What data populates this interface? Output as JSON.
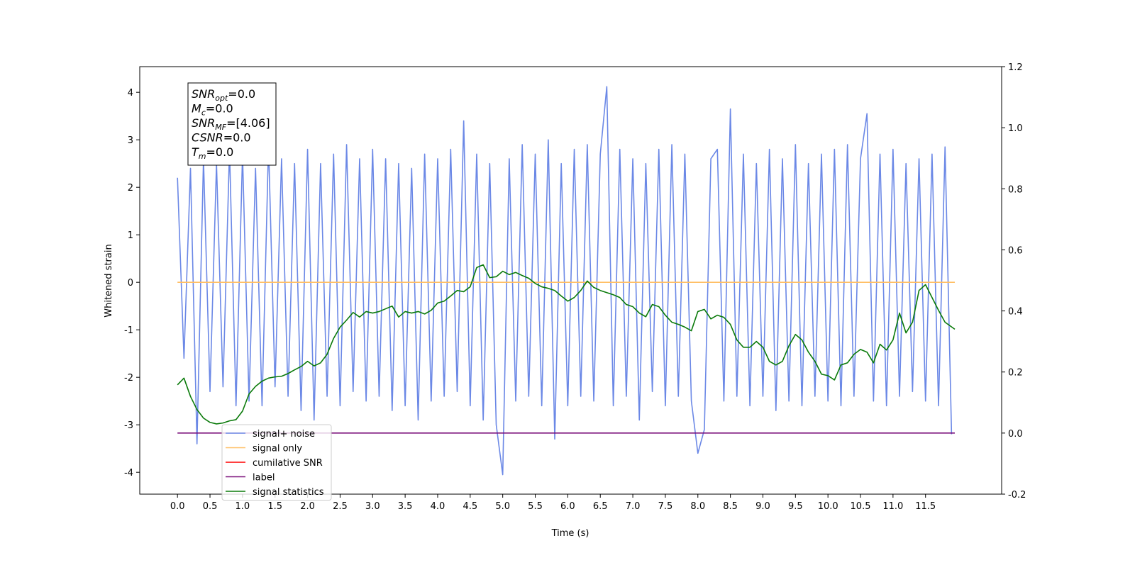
{
  "chart_data": {
    "type": "line",
    "xlabel": "Time (s)",
    "ylabel": "Whitened strain",
    "xlim": [
      -0.58,
      12.67
    ],
    "ylim": [
      -4.46,
      4.54
    ],
    "y2lim": [
      -0.2,
      1.2
    ],
    "xticks": [
      {
        "value": 0,
        "label": "0.0"
      },
      0.5,
      {
        "value": 1,
        "label": "1.0"
      },
      1.5,
      {
        "value": 2,
        "label": "2.0"
      },
      2.5,
      {
        "value": 3,
        "label": "3.0"
      },
      3.5,
      {
        "value": 4,
        "label": "4.0"
      },
      4.5,
      {
        "value": 5,
        "label": "5.0"
      },
      5.5,
      {
        "value": 6,
        "label": "6.0"
      },
      6.5,
      {
        "value": 7,
        "label": "7.0"
      },
      7.5,
      {
        "value": 8,
        "label": "8.0"
      },
      8.5,
      {
        "value": 9,
        "label": "9.0"
      },
      9.5,
      {
        "value": 10,
        "label": "10.0"
      },
      10.5,
      {
        "value": 11,
        "label": "11.0"
      },
      11.5
    ],
    "yticks": [
      -4,
      -3,
      -2,
      -1,
      0,
      1,
      2,
      3,
      4
    ],
    "y2ticks": [
      -0.2,
      {
        "value": 0,
        "label": "0.0"
      },
      0.2,
      0.4,
      0.6,
      0.8,
      {
        "value": 1,
        "label": "1.0"
      },
      1.2
    ],
    "legend": "lower left",
    "annotations": [
      {
        "symbol": "SNR",
        "sub": "opt",
        "text": "=0.0"
      },
      {
        "symbol": "M",
        "sub": "c",
        "text": "=0.0"
      },
      {
        "symbol": "SNR",
        "sub": "MF",
        "text": "=[4.06]"
      },
      {
        "symbol": "CSNR",
        "text": "=0.0"
      },
      {
        "symbol": "T",
        "sub": "m",
        "text": "=0.0"
      }
    ],
    "series": [
      {
        "name": "signal+ noise",
        "color": "#6b88e6",
        "x": [
          0.0,
          0.1,
          0.2,
          0.3,
          0.4,
          0.5,
          0.6,
          0.7,
          0.8,
          0.9,
          1.0,
          1.1,
          1.2,
          1.3,
          1.4,
          1.5,
          1.6,
          1.7,
          1.8,
          1.9,
          2.0,
          2.1,
          2.2,
          2.3,
          2.4,
          2.5,
          2.6,
          2.7,
          2.8,
          2.9,
          3.0,
          3.1,
          3.2,
          3.3,
          3.4,
          3.5,
          3.6,
          3.7,
          3.8,
          3.9,
          4.0,
          4.1,
          4.2,
          4.3,
          4.4,
          4.5,
          4.6,
          4.7,
          4.8,
          4.9,
          5.0,
          5.1,
          5.2,
          5.3,
          5.4,
          5.5,
          5.6,
          5.7,
          5.8,
          5.9,
          6.0,
          6.1,
          6.2,
          6.3,
          6.4,
          6.5,
          6.6,
          6.7,
          6.8,
          6.9,
          7.0,
          7.1,
          7.2,
          7.3,
          7.4,
          7.5,
          7.6,
          7.7,
          7.8,
          7.9,
          8.0,
          8.1,
          8.2,
          8.3,
          8.4,
          8.5,
          8.6,
          8.7,
          8.8,
          8.9,
          9.0,
          9.1,
          9.2,
          9.3,
          9.4,
          9.5,
          9.6,
          9.7,
          9.8,
          9.9,
          10.0,
          10.1,
          10.2,
          10.3,
          10.4,
          10.5,
          10.6,
          10.7,
          10.8,
          10.9,
          11.0,
          11.1,
          11.2,
          11.3,
          11.4,
          11.5,
          11.6,
          11.7,
          11.8,
          11.9
        ],
        "values": [
          2.2,
          -1.6,
          2.4,
          -3.4,
          2.6,
          -2.3,
          2.5,
          -2.2,
          2.8,
          -2.6,
          2.7,
          -2.5,
          2.4,
          -2.6,
          2.9,
          -2.2,
          2.6,
          -2.4,
          2.5,
          -2.7,
          2.8,
          -2.9,
          2.5,
          -2.4,
          2.7,
          -2.6,
          2.9,
          -2.3,
          2.6,
          -2.5,
          2.8,
          -2.4,
          2.6,
          -2.7,
          2.5,
          -2.6,
          2.4,
          -2.9,
          2.7,
          -2.5,
          2.6,
          -2.4,
          2.8,
          -2.3,
          3.4,
          -2.6,
          2.7,
          -2.9,
          2.5,
          -3.0,
          -4.05,
          2.6,
          -2.5,
          2.9,
          -2.4,
          2.7,
          -2.6,
          3.0,
          -3.3,
          2.5,
          -2.6,
          2.8,
          -2.4,
          2.9,
          -2.5,
          2.7,
          4.12,
          -2.6,
          2.8,
          -2.4,
          2.6,
          -2.9,
          2.5,
          -2.3,
          2.8,
          -2.6,
          2.9,
          -2.4,
          2.7,
          -2.5,
          -3.6,
          -3.1,
          2.6,
          2.8,
          -2.5,
          3.65,
          -2.4,
          2.7,
          -2.6,
          2.5,
          -2.4,
          2.8,
          -2.7,
          2.6,
          -2.5,
          2.9,
          -2.6,
          2.5,
          -2.4,
          2.7,
          -2.5,
          2.8,
          -2.6,
          2.9,
          -2.4,
          2.6,
          3.55,
          -2.5,
          2.7,
          -2.6,
          2.8,
          -2.4,
          2.5,
          -2.3,
          2.6,
          -2.5,
          2.7,
          -2.6,
          2.85,
          -3.2
        ]
      },
      {
        "name": "signal only",
        "color": "#ffbf66",
        "x": [
          0.0,
          11.95
        ],
        "values": [
          0,
          0
        ]
      },
      {
        "name": "cumilative SNR",
        "color": "#ff0000"
      },
      {
        "name": "label",
        "color": "#7a0f7a",
        "axis": "y2",
        "x": [
          0.0,
          11.95
        ],
        "values": [
          0,
          0
        ]
      },
      {
        "name": "signal statistics",
        "color": "#0a7a0a",
        "axis": "y2",
        "x": [
          0.0,
          0.1,
          0.2,
          0.3,
          0.4,
          0.5,
          0.6,
          0.7,
          0.8,
          0.9,
          1.0,
          1.1,
          1.2,
          1.3,
          1.4,
          1.5,
          1.6,
          1.7,
          1.8,
          1.9,
          2.0,
          2.1,
          2.2,
          2.3,
          2.4,
          2.5,
          2.6,
          2.7,
          2.8,
          2.9,
          3.0,
          3.1,
          3.2,
          3.3,
          3.4,
          3.5,
          3.6,
          3.7,
          3.8,
          3.9,
          4.0,
          4.1,
          4.2,
          4.3,
          4.4,
          4.5,
          4.6,
          4.7,
          4.8,
          4.9,
          5.0,
          5.1,
          5.2,
          5.3,
          5.4,
          5.5,
          5.6,
          5.7,
          5.8,
          5.9,
          6.0,
          6.1,
          6.2,
          6.3,
          6.4,
          6.5,
          6.6,
          6.7,
          6.8,
          6.9,
          7.0,
          7.1,
          7.2,
          7.3,
          7.4,
          7.5,
          7.6,
          7.7,
          7.8,
          7.9,
          8.0,
          8.1,
          8.2,
          8.3,
          8.4,
          8.5,
          8.6,
          8.7,
          8.8,
          8.9,
          9.0,
          9.1,
          9.2,
          9.3,
          9.4,
          9.5,
          9.6,
          9.7,
          9.8,
          9.9,
          10.0,
          10.1,
          10.2,
          10.3,
          10.4,
          10.5,
          10.6,
          10.7,
          10.8,
          10.9,
          11.0,
          11.1,
          11.2,
          11.3,
          11.4,
          11.5,
          11.6,
          11.7,
          11.8,
          11.95
        ],
        "values": [
          0.158,
          0.18,
          0.12,
          0.077,
          0.049,
          0.035,
          0.03,
          0.033,
          0.04,
          0.044,
          0.072,
          0.128,
          0.153,
          0.17,
          0.18,
          0.184,
          0.186,
          0.195,
          0.207,
          0.218,
          0.235,
          0.22,
          0.23,
          0.258,
          0.31,
          0.347,
          0.37,
          0.395,
          0.38,
          0.398,
          0.393,
          0.398,
          0.407,
          0.416,
          0.38,
          0.398,
          0.393,
          0.398,
          0.39,
          0.402,
          0.426,
          0.432,
          0.449,
          0.467,
          0.463,
          0.479,
          0.542,
          0.551,
          0.509,
          0.512,
          0.53,
          0.519,
          0.526,
          0.516,
          0.507,
          0.49,
          0.479,
          0.474,
          0.467,
          0.449,
          0.432,
          0.444,
          0.467,
          0.498,
          0.477,
          0.467,
          0.46,
          0.453,
          0.444,
          0.421,
          0.414,
          0.393,
          0.381,
          0.421,
          0.414,
          0.386,
          0.363,
          0.356,
          0.347,
          0.335,
          0.398,
          0.405,
          0.374,
          0.386,
          0.379,
          0.356,
          0.305,
          0.281,
          0.281,
          0.3,
          0.281,
          0.235,
          0.223,
          0.235,
          0.286,
          0.323,
          0.305,
          0.265,
          0.235,
          0.193,
          0.188,
          0.174,
          0.223,
          0.23,
          0.258,
          0.274,
          0.265,
          0.23,
          0.291,
          0.272,
          0.305,
          0.393,
          0.328,
          0.363,
          0.467,
          0.486,
          0.444,
          0.402,
          0.363,
          0.34
        ]
      }
    ]
  }
}
